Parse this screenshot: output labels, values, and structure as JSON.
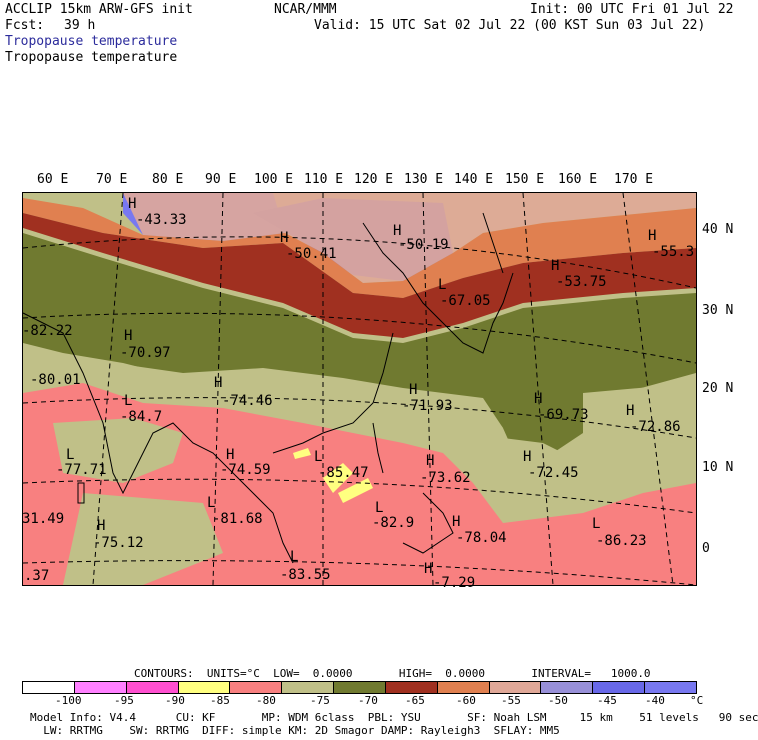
{
  "header": {
    "model": "ACCLIP 15km ARW-GFS init",
    "fcst_label": "Fcst:",
    "fcst_value": "39 h",
    "org": "NCAR/MMM",
    "init": "Init: 00 UTC Fri 01 Jul 22",
    "valid": "Valid: 15 UTC Sat 02 Jul 22 (00 KST Sun 03 Jul 22)",
    "field1": "Tropopause temperature",
    "field2": "Tropopause temperature"
  },
  "longitudes": [
    "60 E",
    "70 E",
    "80 E",
    "90 E",
    "100 E",
    "110 E",
    "120 E",
    "130 E",
    "140 E",
    "150 E",
    "160 E",
    "170 E"
  ],
  "latitudes": [
    "40 N",
    "30 N",
    "20 N",
    "10 N",
    "0"
  ],
  "map_labels": [
    {
      "text": "H",
      "id": "h1"
    },
    {
      "text": "-43.33",
      "id": "v1"
    },
    {
      "text": "H",
      "id": "h2"
    },
    {
      "text": "-50.41",
      "id": "v2"
    },
    {
      "text": "H",
      "id": "h3"
    },
    {
      "text": "-50.19",
      "id": "v3"
    },
    {
      "text": "H",
      "id": "h4"
    },
    {
      "text": "-55.3",
      "id": "v4"
    },
    {
      "text": "H",
      "id": "h5"
    },
    {
      "text": "-53.75",
      "id": "v5"
    },
    {
      "text": "L",
      "id": "l1"
    },
    {
      "text": "-67.05",
      "id": "v6"
    },
    {
      "text": "-82.22",
      "id": "v7"
    },
    {
      "text": "H",
      "id": "h6"
    },
    {
      "text": "-70.97",
      "id": "v8"
    },
    {
      "text": "-80.01",
      "id": "v9"
    },
    {
      "text": "L",
      "id": "l2"
    },
    {
      "text": "-84.7",
      "id": "v10"
    },
    {
      "text": "H",
      "id": "h7"
    },
    {
      "text": "-74.46",
      "id": "v11"
    },
    {
      "text": "H",
      "id": "h8"
    },
    {
      "text": "-71.93",
      "id": "v12"
    },
    {
      "text": "H",
      "id": "h9"
    },
    {
      "text": "-69.73",
      "id": "v13"
    },
    {
      "text": "H",
      "id": "h10"
    },
    {
      "text": "-72.86",
      "id": "v14"
    },
    {
      "text": "L",
      "id": "l3"
    },
    {
      "text": "-77.71",
      "id": "v15"
    },
    {
      "text": "H",
      "id": "h11"
    },
    {
      "text": "-74.59",
      "id": "v16"
    },
    {
      "text": "L",
      "id": "l4"
    },
    {
      "text": "-85.47",
      "id": "v17"
    },
    {
      "text": "H",
      "id": "h12"
    },
    {
      "text": "-73.62",
      "id": "v18"
    },
    {
      "text": "H",
      "id": "h13"
    },
    {
      "text": "-72.45",
      "id": "v19"
    },
    {
      "text": "L",
      "id": "l5"
    },
    {
      "text": "-81.68",
      "id": "v20"
    },
    {
      "text": "L",
      "id": "l6"
    },
    {
      "text": "-82.9",
      "id": "v21"
    },
    {
      "text": "H",
      "id": "h14"
    },
    {
      "text": "-78.04",
      "id": "v22"
    },
    {
      "text": "L",
      "id": "l7"
    },
    {
      "text": "-86.23",
      "id": "v23"
    },
    {
      "text": "31.49",
      "id": "v24"
    },
    {
      "text": "H",
      "id": "h15"
    },
    {
      "text": "-75.12",
      "id": "v25"
    },
    {
      "text": "L",
      "id": "l8"
    },
    {
      "text": "-83.55",
      "id": "v26"
    },
    {
      "text": ".37",
      "id": "v27"
    },
    {
      "text": "H",
      "id": "h16"
    },
    {
      "text": "-7.29",
      "id": "v28"
    }
  ],
  "legend": {
    "contours_line": "CONTOURS:  UNITS=°C  LOW=  0.0000       HIGH=  0.0000       INTERVAL=   1000.0",
    "colors": [
      "#ffffff",
      "#ff80ff",
      "#ff50d0",
      "#ffff80",
      "#f88080",
      "#c0c088",
      "#707a30",
      "#a03020",
      "#e08050",
      "#e0a898",
      "#9890d8",
      "#6868e8",
      "#7878f0"
    ],
    "ticks": [
      "-100",
      "-95",
      "-90",
      "-85",
      "-80",
      "-75",
      "-70",
      "-65",
      "-60",
      "-55",
      "-50",
      "-45",
      "-40",
      "°C"
    ]
  },
  "footer": {
    "line1": "Model Info: V4.4      CU: KF       MP: WDM 6class  PBL: YSU       SF: Noah LSM     15 km    51 levels   90 sec",
    "line2": "  LW: RRTMG    SW: RRTMG  DIFF: simple KM: 2D Smagor DAMP: Rayleigh3  SFLAY: MM5"
  }
}
